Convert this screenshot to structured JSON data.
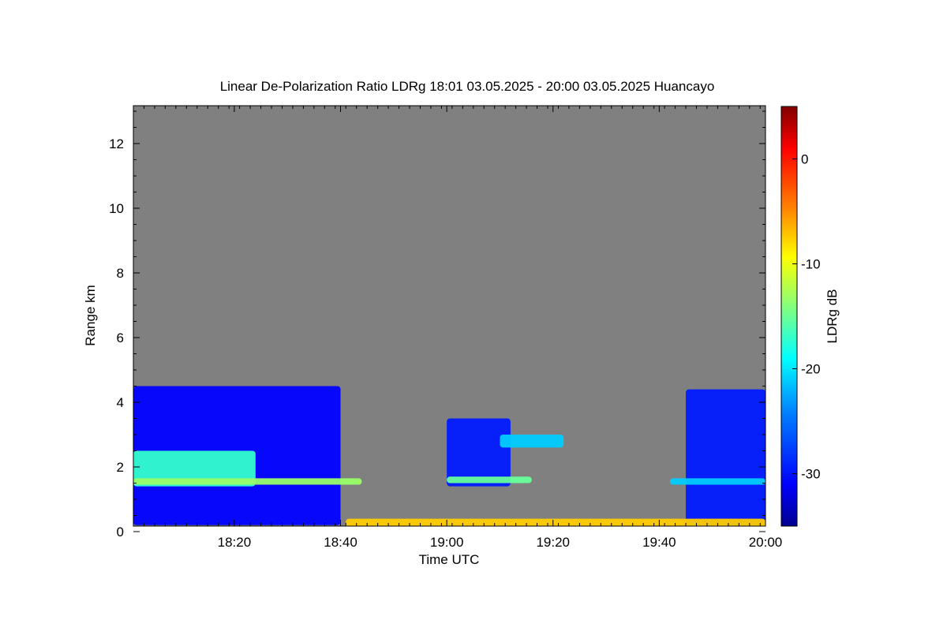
{
  "chart_data": {
    "type": "heatmap",
    "title": "Linear De-Polarization Ratio LDRg   18:01 03.05.2025 - 20:00 03.05.2025 Huancayo",
    "xlabel": "Time UTC",
    "ylabel": "Range km",
    "colorbar_label": "LDRg dB",
    "x_range_minutes_utc": [
      1081,
      1200
    ],
    "x_ticks": [
      {
        "minute": 1100,
        "label": "18:20"
      },
      {
        "minute": 1120,
        "label": "18:40"
      },
      {
        "minute": 1140,
        "label": "19:00"
      },
      {
        "minute": 1160,
        "label": "19:20"
      },
      {
        "minute": 1180,
        "label": "19:40"
      },
      {
        "minute": 1200,
        "label": "20:00"
      }
    ],
    "ylim_km": [
      0,
      13
    ],
    "y_ticks": [
      {
        "value": 0,
        "label": "0"
      },
      {
        "value": 2,
        "label": "2"
      },
      {
        "value": 4,
        "label": "4"
      },
      {
        "value": 6,
        "label": "6"
      },
      {
        "value": 8,
        "label": "8"
      },
      {
        "value": 10,
        "label": "10"
      },
      {
        "value": 12,
        "label": "12"
      }
    ],
    "colorbar_range_db": [
      -35,
      5
    ],
    "colorbar_ticks": [
      {
        "value": 0,
        "label": "0"
      },
      {
        "value": -10,
        "label": "-10"
      },
      {
        "value": -20,
        "label": "-20"
      },
      {
        "value": -30,
        "label": "-30"
      }
    ],
    "colormap": [
      "#00008f",
      "#0000ff",
      "#0080ff",
      "#00ffff",
      "#80ff80",
      "#ffff00",
      "#ff8000",
      "#ff0000",
      "#800000"
    ],
    "background_color": "#808080",
    "features": [
      {
        "name": "cloud-mass-1",
        "t_start_min": 1081,
        "t_end_min": 1120,
        "h_bottom_km": 0.2,
        "h_top_km": 4.5,
        "ldr_db": -30
      },
      {
        "name": "cloud-mass-2",
        "t_start_min": 1140,
        "t_end_min": 1152,
        "h_bottom_km": 1.4,
        "h_top_km": 3.5,
        "ldr_db": -29
      },
      {
        "name": "cloud-mass-3",
        "t_start_min": 1185,
        "t_end_min": 1200,
        "h_bottom_km": 0.2,
        "h_top_km": 4.4,
        "ldr_db": -29
      },
      {
        "name": "depolarizing-layer-1",
        "t_start_min": 1081,
        "t_end_min": 1104,
        "h_bottom_km": 1.4,
        "h_top_km": 2.5,
        "ldr_db": -18
      },
      {
        "name": "melting-layer-1",
        "t_start_min": 1081,
        "t_end_min": 1124,
        "h_bottom_km": 1.45,
        "h_top_km": 1.65,
        "ldr_db": -14
      },
      {
        "name": "melting-layer-2",
        "t_start_min": 1140,
        "t_end_min": 1156,
        "h_bottom_km": 1.5,
        "h_top_km": 1.7,
        "ldr_db": -16
      },
      {
        "name": "cloud-layer-2-upper",
        "t_start_min": 1150,
        "t_end_min": 1162,
        "h_bottom_km": 2.6,
        "h_top_km": 3.0,
        "ldr_db": -22
      },
      {
        "name": "melting-layer-3",
        "t_start_min": 1182,
        "t_end_min": 1200,
        "h_bottom_km": 1.45,
        "h_top_km": 1.65,
        "ldr_db": -22
      },
      {
        "name": "surface-clutter",
        "t_start_min": 1121,
        "t_end_min": 1200,
        "h_bottom_km": 0.1,
        "h_top_km": 0.4,
        "ldr_db": -8
      }
    ]
  }
}
